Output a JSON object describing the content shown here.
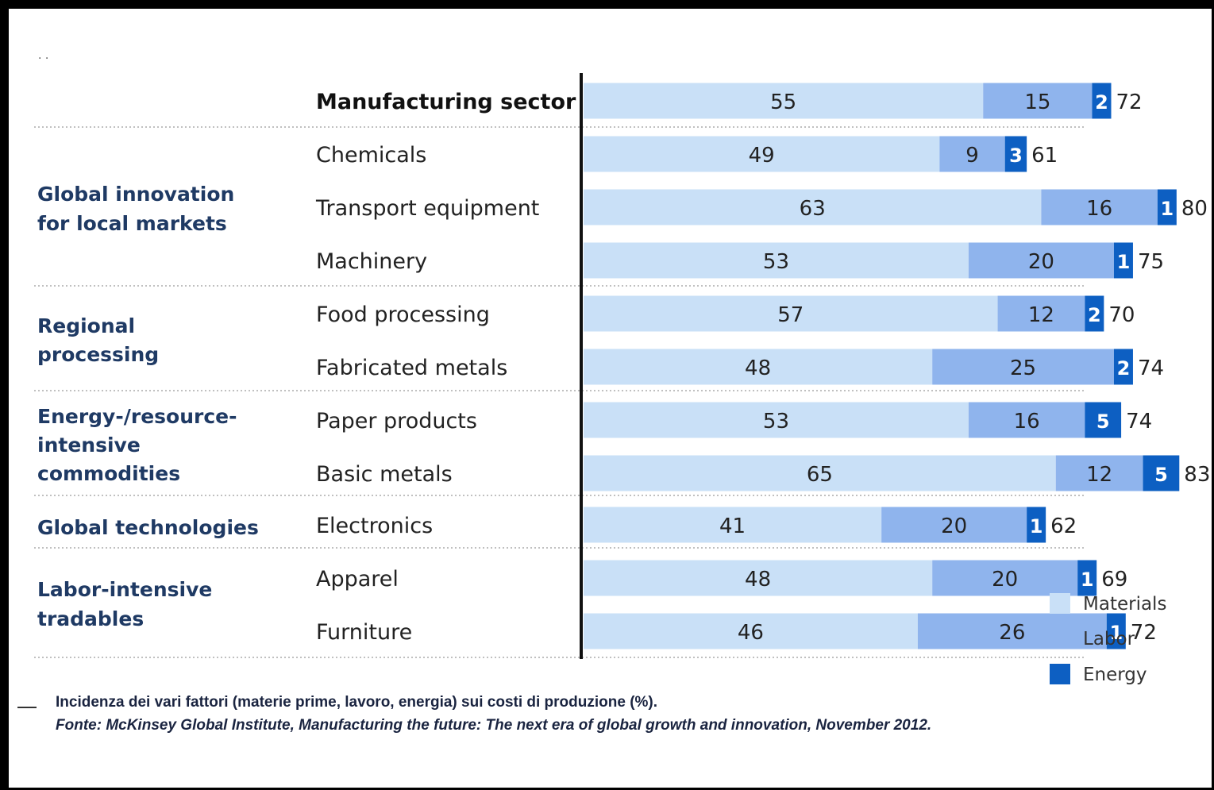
{
  "chart_data": {
    "type": "bar",
    "stacked": true,
    "orientation": "horizontal",
    "groups": [
      {
        "label_lines": [],
        "rows": [
          0
        ]
      },
      {
        "label_lines": [
          "Global innovation",
          "for local markets"
        ],
        "rows": [
          1,
          2,
          3
        ]
      },
      {
        "label_lines": [
          "Regional",
          "processing"
        ],
        "rows": [
          4,
          5
        ]
      },
      {
        "label_lines": [
          "Energy-/resource-",
          "intensive",
          "commodities"
        ],
        "rows": [
          6,
          7
        ]
      },
      {
        "label_lines": [
          "Global technologies"
        ],
        "rows": [
          8
        ]
      },
      {
        "label_lines": [
          "Labor-intensive",
          "tradables"
        ],
        "rows": [
          9,
          10
        ]
      }
    ],
    "categories": [
      "Manufacturing sector",
      "Chemicals",
      "Transport equipment",
      "Machinery",
      "Food processing",
      "Fabricated metals",
      "Paper products",
      "Basic metals",
      "Electronics",
      "Apparel",
      "Furniture"
    ],
    "series": [
      {
        "name": "Materials",
        "color": "#c9e0f7",
        "values": [
          55,
          49,
          63,
          53,
          57,
          48,
          53,
          65,
          41,
          48,
          46
        ]
      },
      {
        "name": "Labor",
        "color": "#8fb4ed",
        "values": [
          15,
          9,
          16,
          20,
          12,
          25,
          16,
          12,
          20,
          20,
          26
        ]
      },
      {
        "name": "Energy",
        "color": "#0d5fc2",
        "values": [
          2,
          3,
          1,
          1,
          2,
          2,
          5,
          5,
          1,
          1,
          1
        ]
      }
    ],
    "totals": [
      "72",
      "61",
      "80",
      "75",
      "70",
      "74",
      "74",
      "83",
      "62",
      "69",
      "72"
    ],
    "legend_position": "bottom-right"
  },
  "caption": {
    "line1": "Incidenza dei vari fattori (materie prime, lavoro, energia) sui costi di produzione (%).",
    "line2": "Fonte: McKinsey Global Institute, Manufacturing the future: The next era of global growth and innovation, November 2012."
  },
  "corner_mark": ". ."
}
